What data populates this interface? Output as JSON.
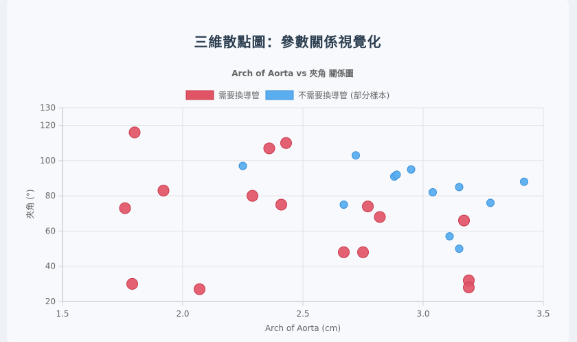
{
  "page": {
    "title": "三維散點圖：參數關係視覺化"
  },
  "chart_data": {
    "type": "scatter",
    "title": "Arch of Aorta vs 夾角 關係圖",
    "xlabel": "Arch of Aorta (cm)",
    "ylabel": "夾角 (°)",
    "xlim": [
      1.5,
      3.5
    ],
    "ylim": [
      20,
      130
    ],
    "x_ticks": [
      "1.5",
      "2.0",
      "2.5",
      "3.0",
      "3.5"
    ],
    "y_ticks": [
      "20",
      "40",
      "60",
      "80",
      "100",
      "120",
      "130"
    ],
    "grid": true,
    "legend_position": "top",
    "series": [
      {
        "name": "需要換導管",
        "color": "#e15466",
        "border_color": "#c93a4c",
        "points": [
          {
            "x": 1.8,
            "y": 116
          },
          {
            "x": 1.92,
            "y": 83
          },
          {
            "x": 1.76,
            "y": 73
          },
          {
            "x": 1.79,
            "y": 30
          },
          {
            "x": 2.07,
            "y": 27
          },
          {
            "x": 2.29,
            "y": 80
          },
          {
            "x": 2.36,
            "y": 107
          },
          {
            "x": 2.43,
            "y": 110
          },
          {
            "x": 2.41,
            "y": 75
          },
          {
            "x": 2.67,
            "y": 48
          },
          {
            "x": 2.75,
            "y": 48
          },
          {
            "x": 2.77,
            "y": 74
          },
          {
            "x": 2.82,
            "y": 68
          },
          {
            "x": 3.17,
            "y": 66
          },
          {
            "x": 3.19,
            "y": 32
          },
          {
            "x": 3.19,
            "y": 28
          }
        ]
      },
      {
        "name": "不需要換導管 (部分樣本)",
        "color": "#5aaef0",
        "border_color": "#3a8fd8",
        "points": [
          {
            "x": 2.25,
            "y": 97
          },
          {
            "x": 2.67,
            "y": 75
          },
          {
            "x": 2.72,
            "y": 103
          },
          {
            "x": 2.88,
            "y": 91
          },
          {
            "x": 2.89,
            "y": 92
          },
          {
            "x": 2.95,
            "y": 95
          },
          {
            "x": 3.04,
            "y": 82
          },
          {
            "x": 3.11,
            "y": 57
          },
          {
            "x": 3.15,
            "y": 85
          },
          {
            "x": 3.15,
            "y": 50
          },
          {
            "x": 3.28,
            "y": 76
          },
          {
            "x": 3.42,
            "y": 88
          }
        ]
      }
    ]
  }
}
